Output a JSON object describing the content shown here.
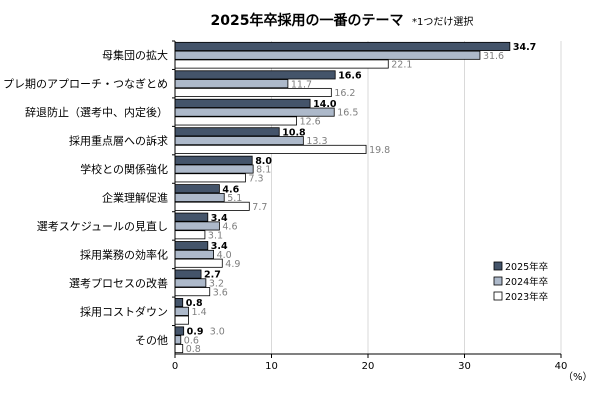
{
  "chart_data": {
    "type": "bar",
    "orientation": "horizontal",
    "title": "2025年卒採用の一番のテーマ",
    "note": "*1つだけ選択",
    "unit_label": "（%）",
    "xlim": [
      0,
      40
    ],
    "xticks": [
      "0",
      "10",
      "20",
      "30",
      "40"
    ],
    "categories": [
      "母集団の拡大",
      "プレ期のアプローチ・つなぎとめ",
      "辞退防止（選考中、内定後）",
      "採用重点層への訴求",
      "学校との関係強化",
      "企業理解促進",
      "選考スケジュールの見直し",
      "採用業務の効率化",
      "選考プロセスの改善",
      "採用コストダウン",
      "その他"
    ],
    "series": [
      {
        "name": "2025年卒",
        "color": "#44546a",
        "values": [
          34.7,
          16.6,
          14.0,
          10.8,
          8.0,
          4.6,
          3.4,
          3.4,
          2.7,
          0.8,
          0.9
        ],
        "labels": [
          "34.7",
          "16.6",
          "14.0",
          "10.8",
          "8.0",
          "4.6",
          "3.4",
          "3.4",
          "2.7",
          "0.8",
          "0.9"
        ]
      },
      {
        "name": "2024年卒",
        "color": "#adb9ca",
        "values": [
          31.6,
          11.7,
          16.5,
          13.3,
          8.1,
          5.1,
          4.6,
          4.0,
          3.2,
          1.4,
          0.6
        ],
        "labels": [
          "31.6",
          "11.7",
          "16.5",
          "13.3",
          "8.1",
          "5.1",
          "4.6",
          "4.0",
          "3.2",
          "1.4",
          "0.6"
        ]
      },
      {
        "name": "2023年卒",
        "color": "#ffffff",
        "values": [
          22.1,
          16.2,
          12.6,
          19.8,
          7.3,
          7.7,
          3.1,
          4.9,
          3.6,
          1.4,
          0.8
        ],
        "labels": [
          "22.1",
          "16.2",
          "12.6",
          "19.8",
          "7.3",
          "7.7",
          "3.1",
          "4.9",
          "3.6",
          "",
          "0.8"
        ]
      }
    ],
    "extra_labels": [
      {
        "category_index": 10,
        "text": "3.0"
      }
    ],
    "legend": {
      "position": "right"
    }
  }
}
